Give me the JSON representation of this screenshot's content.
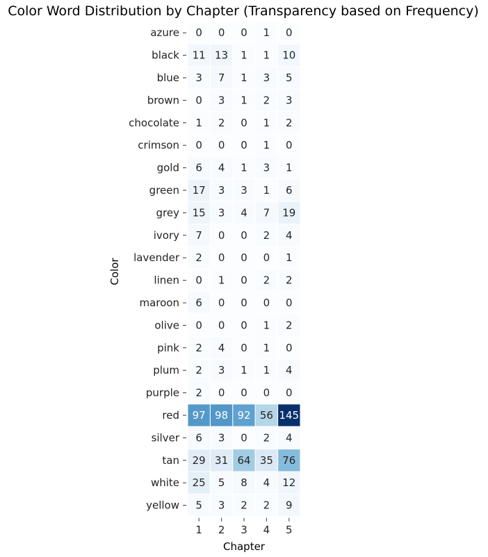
{
  "chart_data": {
    "type": "heatmap",
    "title": "Color Word Distribution by Chapter (Transparency based on Frequency)",
    "xlabel": "Chapter",
    "ylabel": "Color",
    "x_categories": [
      "1",
      "2",
      "3",
      "4",
      "5"
    ],
    "y_categories": [
      "azure",
      "black",
      "blue",
      "brown",
      "chocolate",
      "crimson",
      "gold",
      "green",
      "grey",
      "ivory",
      "lavender",
      "linen",
      "maroon",
      "olive",
      "pink",
      "plum",
      "purple",
      "red",
      "silver",
      "tan",
      "white",
      "yellow"
    ],
    "values": [
      [
        0,
        0,
        0,
        1,
        0
      ],
      [
        11,
        13,
        1,
        1,
        10
      ],
      [
        3,
        7,
        1,
        3,
        5
      ],
      [
        0,
        3,
        1,
        2,
        3
      ],
      [
        1,
        2,
        0,
        1,
        2
      ],
      [
        0,
        0,
        0,
        1,
        0
      ],
      [
        6,
        4,
        1,
        3,
        1
      ],
      [
        17,
        3,
        3,
        1,
        6
      ],
      [
        15,
        3,
        4,
        7,
        19
      ],
      [
        7,
        0,
        0,
        2,
        4
      ],
      [
        2,
        0,
        0,
        0,
        1
      ],
      [
        0,
        1,
        0,
        2,
        2
      ],
      [
        6,
        0,
        0,
        0,
        0
      ],
      [
        0,
        0,
        0,
        1,
        2
      ],
      [
        2,
        4,
        0,
        1,
        0
      ],
      [
        2,
        3,
        1,
        1,
        4
      ],
      [
        2,
        0,
        0,
        0,
        0
      ],
      [
        97,
        98,
        92,
        56,
        145
      ],
      [
        6,
        3,
        0,
        2,
        4
      ],
      [
        29,
        31,
        64,
        35,
        76
      ],
      [
        25,
        5,
        8,
        4,
        12
      ],
      [
        5,
        3,
        2,
        2,
        9
      ]
    ],
    "value_range": [
      0,
      145
    ],
    "colormap": "Blues",
    "annotated": true,
    "colorbar": false
  }
}
